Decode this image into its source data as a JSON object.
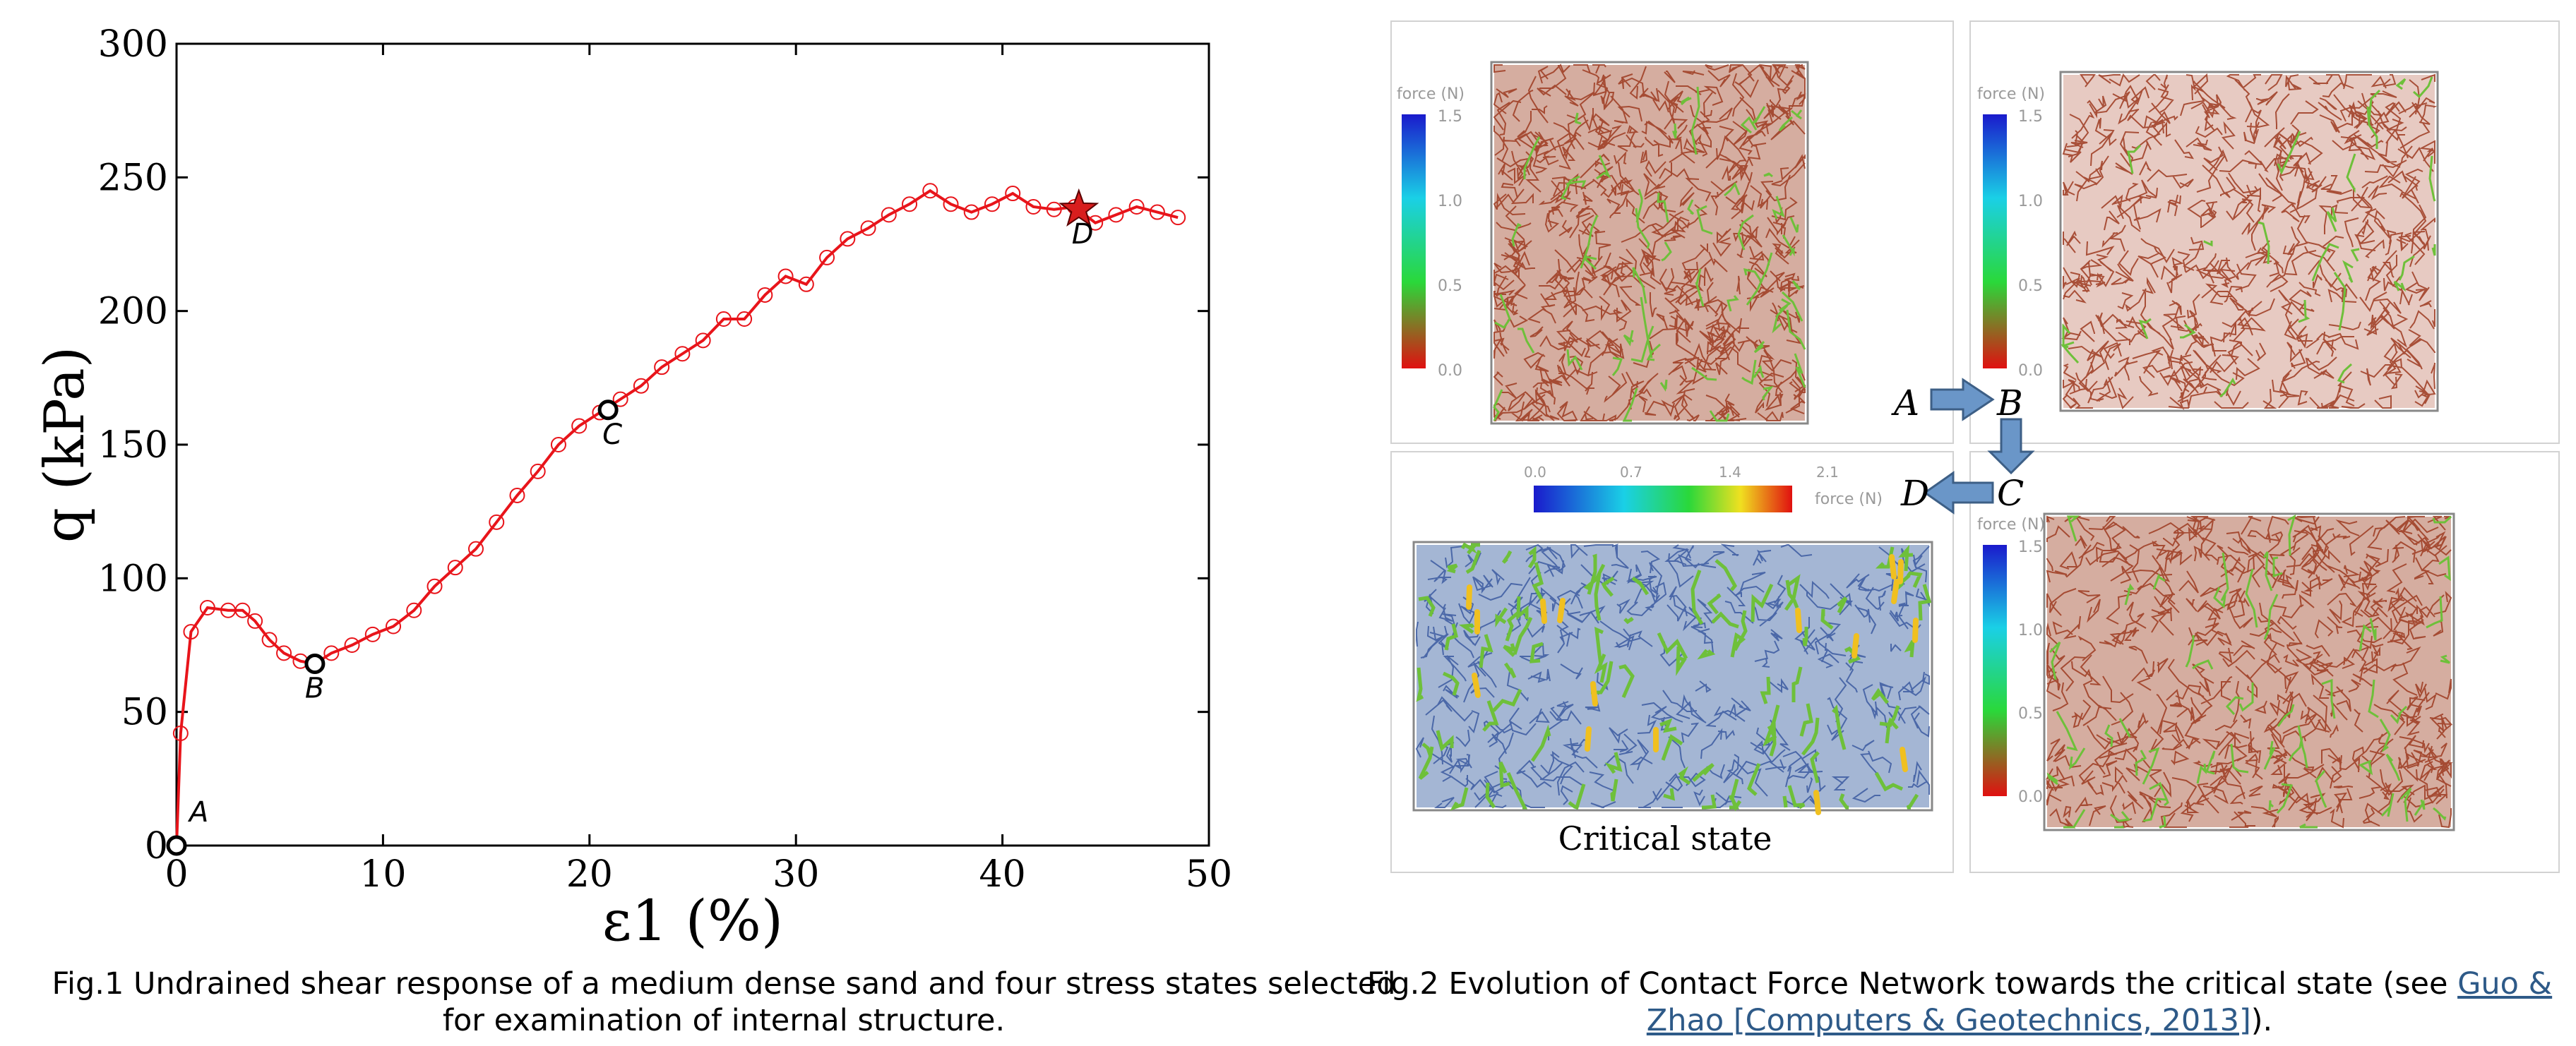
{
  "chart_data": {
    "type": "line",
    "xlabel": "ε1 (%)",
    "ylabel": "q (kPa)",
    "xlim": [
      0,
      50
    ],
    "ylim": [
      0,
      300
    ],
    "xticks": [
      0,
      10,
      20,
      30,
      40,
      50
    ],
    "yticks": [
      0,
      50,
      100,
      150,
      200,
      250,
      300
    ],
    "grid": false,
    "series": [
      {
        "color": "#e8141a",
        "x": [
          0,
          0.2,
          0.7,
          1.5,
          2.5,
          3.2,
          3.8,
          4.5,
          5.2,
          6.0,
          6.7,
          7.5,
          8.5,
          9.5,
          10.5,
          11.5,
          12.5,
          13.5,
          14.5,
          15.5,
          16.5,
          17.5,
          18.5,
          19.5,
          20.5,
          21.5,
          22.5,
          23.5,
          24.5,
          25.5,
          26.5,
          27.5,
          28.5,
          29.5,
          30.5,
          31.5,
          32.5,
          33.5,
          34.5,
          35.5,
          36.5,
          37.5,
          38.5,
          39.5,
          40.5,
          41.5,
          42.5,
          43.5,
          44.5,
          45.5,
          46.5,
          47.5,
          48.5
        ],
        "y": [
          0,
          42,
          80,
          89,
          88,
          88,
          84,
          77,
          72,
          69,
          68,
          72,
          75,
          79,
          82,
          88,
          97,
          104,
          111,
          121,
          131,
          140,
          150,
          157,
          162,
          167,
          172,
          179,
          184,
          189,
          197,
          197,
          206,
          213,
          210,
          220,
          227,
          231,
          236,
          240,
          245,
          240,
          237,
          240,
          244,
          239,
          238,
          239,
          233,
          236,
          239,
          237,
          235
        ]
      }
    ],
    "points": [
      {
        "label": "A",
        "x": 0,
        "y": 0,
        "marker": "circle"
      },
      {
        "label": "B",
        "x": 6.7,
        "y": 68,
        "marker": "circle"
      },
      {
        "label": "C",
        "x": 20.9,
        "y": 163,
        "marker": "circle"
      },
      {
        "label": "D",
        "x": 43.7,
        "y": 238,
        "marker": "star"
      }
    ]
  },
  "figure2": {
    "force_label": "force (N)",
    "colorbar_ticks": [
      "1.5",
      "1.0",
      "0.5",
      "0.0"
    ],
    "critical_colorbar_ticks": [
      "0.0",
      "0.7",
      "1.4",
      "2.1"
    ],
    "critical_state_label": "Critical state",
    "arrow_letters": [
      "A",
      "B",
      "C",
      "D"
    ]
  },
  "captions": {
    "fig1": "Fig.1 Undrained shear response of a medium dense sand and four stress states selected for examination of internal structure.",
    "fig2_prefix": "Fig.2 Evolution of Contact Force Network towards the critical state (see ",
    "fig2_link": "Guo & Zhao [Computers & Geotechnics, 2013]",
    "fig2_suffix": ")."
  },
  "colors": {
    "curve": "#e8141a",
    "star": "#d81e1e",
    "arrow_fill": "#6a96c8",
    "network_red": "#9c3a20",
    "network_green": "#6ec03a",
    "network_blue": "#3c5aa0",
    "link": "#2e5a88"
  }
}
